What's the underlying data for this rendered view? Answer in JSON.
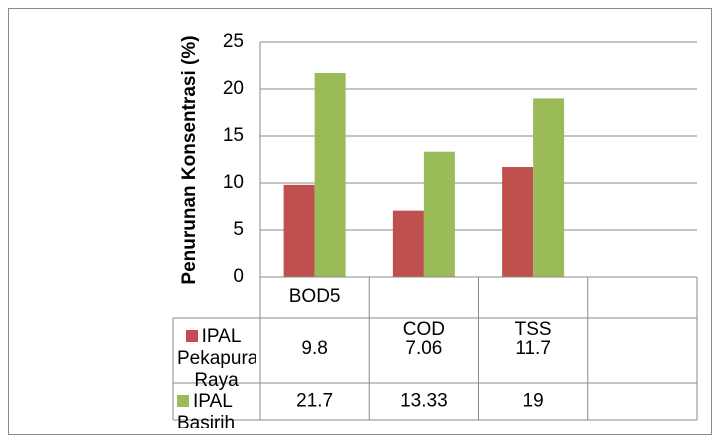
{
  "chart_data": {
    "type": "bar",
    "y_label": "Penurunan Konsentrasi (%)",
    "categories": [
      "BOD5",
      "COD",
      "TSS",
      null
    ],
    "series": [
      {
        "name": "IPAL Pekapuran Raya",
        "color": "#c0504d",
        "values": [
          9.8,
          7.06,
          11.7,
          null
        ]
      },
      {
        "name": "IPAL Basirih",
        "color": "#9bbb59",
        "values": [
          21.7,
          13.33,
          19,
          null
        ]
      }
    ],
    "ylim": [
      0,
      25
    ],
    "yticks": [
      0,
      5,
      10,
      15,
      20,
      25
    ],
    "grid": true,
    "data_table": true
  }
}
